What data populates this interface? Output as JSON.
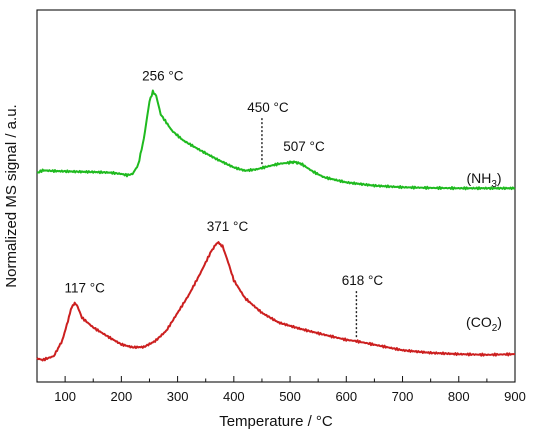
{
  "chart_data": {
    "type": "line",
    "xlabel": "Temperature / °C",
    "ylabel": "Normalized MS signal / a.u.",
    "xlim": [
      50,
      900
    ],
    "ylim": [
      0,
      1
    ],
    "x_ticks": [
      100,
      200,
      300,
      400,
      500,
      600,
      700,
      800,
      900
    ],
    "y_ticks_shown": false,
    "grid": false,
    "legend": "none",
    "series": [
      {
        "name": "(NH3)",
        "label_main": "(NH",
        "label_sub": "3",
        "label_end": ")",
        "color": "#1fba1f",
        "points": [
          [
            50,
            0.575
          ],
          [
            60,
            0.583
          ],
          [
            80,
            0.581
          ],
          [
            100,
            0.58
          ],
          [
            120,
            0.579
          ],
          [
            150,
            0.578
          ],
          [
            180,
            0.576
          ],
          [
            200,
            0.572
          ],
          [
            210,
            0.568
          ],
          [
            220,
            0.572
          ],
          [
            230,
            0.6
          ],
          [
            240,
            0.68
          ],
          [
            250,
            0.795
          ],
          [
            256,
            0.825
          ],
          [
            262,
            0.812
          ],
          [
            270,
            0.755
          ],
          [
            290,
            0.705
          ],
          [
            310,
            0.675
          ],
          [
            340,
            0.645
          ],
          [
            370,
            0.617
          ],
          [
            400,
            0.592
          ],
          [
            420,
            0.582
          ],
          [
            440,
            0.586
          ],
          [
            460,
            0.595
          ],
          [
            480,
            0.603
          ],
          [
            500,
            0.607
          ],
          [
            507,
            0.609
          ],
          [
            520,
            0.603
          ],
          [
            540,
            0.58
          ],
          [
            560,
            0.562
          ],
          [
            600,
            0.546
          ],
          [
            650,
            0.536
          ],
          [
            700,
            0.531
          ],
          [
            750,
            0.529
          ],
          [
            800,
            0.528
          ],
          [
            850,
            0.528
          ],
          [
            900,
            0.528
          ]
        ]
      },
      {
        "name": "(CO2)",
        "label_main": "(CO",
        "label_sub": "2",
        "label_end": ")",
        "color": "#cc1f1f",
        "points": [
          [
            50,
            0.005
          ],
          [
            60,
            0.0
          ],
          [
            80,
            0.012
          ],
          [
            95,
            0.06
          ],
          [
            105,
            0.12
          ],
          [
            112,
            0.165
          ],
          [
            117,
            0.174
          ],
          [
            122,
            0.165
          ],
          [
            130,
            0.13
          ],
          [
            150,
            0.1
          ],
          [
            180,
            0.068
          ],
          [
            200,
            0.048
          ],
          [
            220,
            0.039
          ],
          [
            240,
            0.04
          ],
          [
            260,
            0.058
          ],
          [
            280,
            0.09
          ],
          [
            300,
            0.145
          ],
          [
            320,
            0.2
          ],
          [
            340,
            0.265
          ],
          [
            360,
            0.335
          ],
          [
            371,
            0.362
          ],
          [
            380,
            0.35
          ],
          [
            390,
            0.3
          ],
          [
            400,
            0.245
          ],
          [
            420,
            0.19
          ],
          [
            450,
            0.145
          ],
          [
            480,
            0.115
          ],
          [
            520,
            0.095
          ],
          [
            560,
            0.078
          ],
          [
            600,
            0.062
          ],
          [
            618,
            0.058
          ],
          [
            650,
            0.047
          ],
          [
            700,
            0.03
          ],
          [
            750,
            0.022
          ],
          [
            800,
            0.018
          ],
          [
            850,
            0.016
          ],
          [
            900,
            0.018
          ]
        ]
      }
    ],
    "annotations": [
      {
        "text": "256 °C",
        "series": 0,
        "x": 256,
        "y": 0.825,
        "kind": "peak"
      },
      {
        "text": "450 °C",
        "series": 0,
        "x": 450,
        "y": 0.59,
        "kind": "marker"
      },
      {
        "text": "507 °C",
        "series": 0,
        "x": 507,
        "y": 0.609,
        "kind": "peak"
      },
      {
        "text": "117 °C",
        "series": 1,
        "x": 117,
        "y": 0.174,
        "kind": "peak"
      },
      {
        "text": "371 °C",
        "series": 1,
        "x": 371,
        "y": 0.362,
        "kind": "peak"
      },
      {
        "text": "618 °C",
        "series": 1,
        "x": 618,
        "y": 0.058,
        "kind": "marker"
      }
    ]
  }
}
